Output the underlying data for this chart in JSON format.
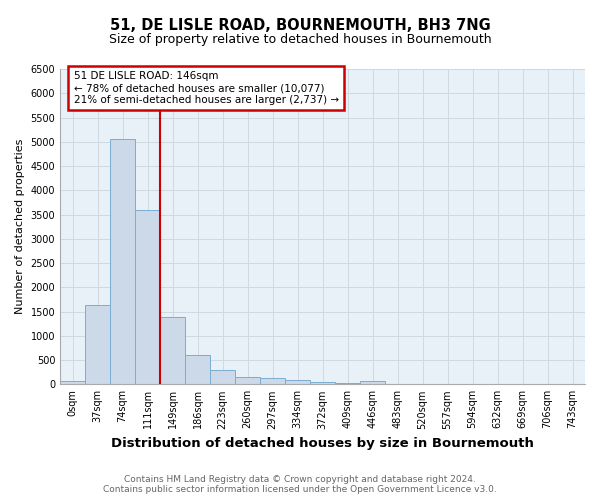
{
  "title": "51, DE LISLE ROAD, BOURNEMOUTH, BH3 7NG",
  "subtitle": "Size of property relative to detached houses in Bournemouth",
  "xlabel": "Distribution of detached houses by size in Bournemouth",
  "ylabel": "Number of detached properties",
  "bar_labels": [
    "0sqm",
    "37sqm",
    "74sqm",
    "111sqm",
    "149sqm",
    "186sqm",
    "223sqm",
    "260sqm",
    "297sqm",
    "334sqm",
    "372sqm",
    "409sqm",
    "446sqm",
    "483sqm",
    "520sqm",
    "557sqm",
    "594sqm",
    "632sqm",
    "669sqm",
    "706sqm",
    "743sqm"
  ],
  "bar_values": [
    75,
    1630,
    5050,
    3590,
    1390,
    610,
    295,
    155,
    120,
    95,
    45,
    20,
    60,
    0,
    0,
    0,
    0,
    0,
    0,
    0,
    0
  ],
  "bar_color": "#ccd9e8",
  "bar_edge_color": "#7aadd4",
  "vline_x": 3.5,
  "vline_color": "#cc0000",
  "annotation_text": "51 DE LISLE ROAD: 146sqm\n← 78% of detached houses are smaller (10,077)\n21% of semi-detached houses are larger (2,737) →",
  "ylim": [
    0,
    6500
  ],
  "yticks": [
    0,
    500,
    1000,
    1500,
    2000,
    2500,
    3000,
    3500,
    4000,
    4500,
    5000,
    5500,
    6000,
    6500
  ],
  "footnote": "Contains HM Land Registry data © Crown copyright and database right 2024.\nContains public sector information licensed under the Open Government Licence v3.0.",
  "bg_color": "#ffffff",
  "grid_color": "#d0d8e0",
  "title_fontsize": 10.5,
  "subtitle_fontsize": 9,
  "ylabel_fontsize": 8,
  "xlabel_fontsize": 9.5,
  "tick_fontsize": 7,
  "annotation_fontsize": 7.5,
  "footnote_fontsize": 6.5
}
